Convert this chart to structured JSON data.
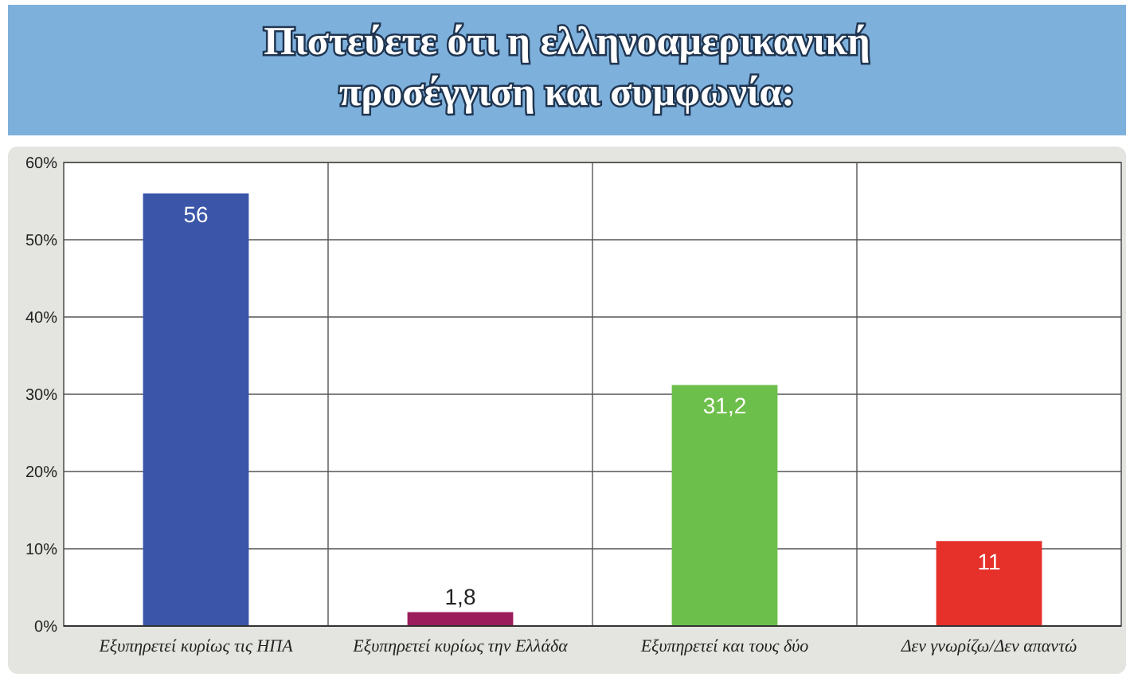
{
  "chart_data": {
    "type": "bar",
    "title": "Πιστεύετε ότι η ελληνοαμερικανική προσέγγιση και συμφωνία:",
    "categories": [
      "Εξυπηρετεί κυρίως τις ΗΠΑ",
      "Εξυπηρετεί κυρίως την Ελλάδα",
      "Εξυπηρετεί και τους δύο",
      "Δεν γνωρίζω/Δεν απαντώ"
    ],
    "values": [
      56,
      1.8,
      31.2,
      11
    ],
    "colors": [
      "#3b56a8",
      "#9c1d5c",
      "#6dbf4b",
      "#e6302a"
    ],
    "value_labels": [
      "56",
      "1,8",
      "31,2",
      "11"
    ],
    "ylim": [
      0,
      60
    ],
    "yticks": [
      {
        "value": 0,
        "label": "0%"
      },
      {
        "value": 10,
        "label": "10%"
      },
      {
        "value": 20,
        "label": "20%"
      },
      {
        "value": 30,
        "label": "30%"
      },
      {
        "value": 40,
        "label": "40%"
      },
      {
        "value": 50,
        "label": "50%"
      },
      {
        "value": 60,
        "label": "60%"
      }
    ],
    "grid": true
  }
}
